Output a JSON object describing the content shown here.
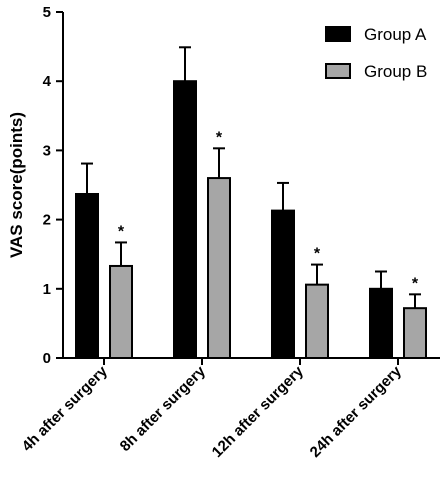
{
  "chart_data": {
    "type": "bar",
    "ylabel": "VAS score(points)",
    "ylim": [
      0,
      5
    ],
    "yticks": [
      "0",
      "1",
      "2",
      "3",
      "4",
      "5"
    ],
    "categories": [
      "4h after surgery",
      "8h after surgery",
      "12h after surgery",
      "24h after surgery"
    ],
    "series": [
      {
        "name": "Group A",
        "color": "#000000",
        "values": [
          2.37,
          4.0,
          2.13,
          1.0
        ],
        "errors": [
          0.44,
          0.49,
          0.4,
          0.25
        ]
      },
      {
        "name": "Group B",
        "color": "#a6a6a6",
        "values": [
          1.33,
          2.6,
          1.06,
          0.72
        ],
        "errors": [
          0.34,
          0.43,
          0.29,
          0.2
        ]
      }
    ],
    "significance_marker": "*",
    "significant": [
      [
        false,
        false,
        false,
        false
      ],
      [
        true,
        true,
        true,
        true
      ]
    ],
    "legend_position": "top-right",
    "grid": false
  }
}
